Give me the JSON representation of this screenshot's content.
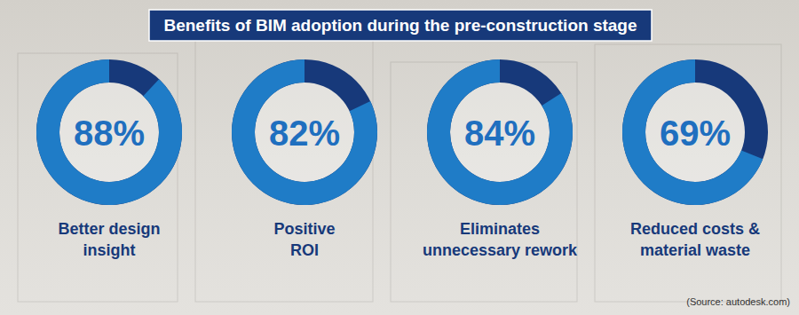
{
  "chart_data": {
    "type": "donut",
    "title": "Benefits of BIM adoption during the pre-construction stage",
    "categories": [
      "Better design\ninsight",
      "Positive\nROI",
      "Eliminates\nunnecessary rework",
      "Reduced costs &\nmaterial waste"
    ],
    "values": [
      88,
      82,
      84,
      69
    ],
    "value_labels": [
      "88%",
      "82%",
      "84%",
      "69%"
    ],
    "data_labels": true,
    "color": "#1f7cc7",
    "ylim": [
      0,
      100
    ],
    "annotations": [
      "(Source: autodesk.com)"
    ]
  }
}
